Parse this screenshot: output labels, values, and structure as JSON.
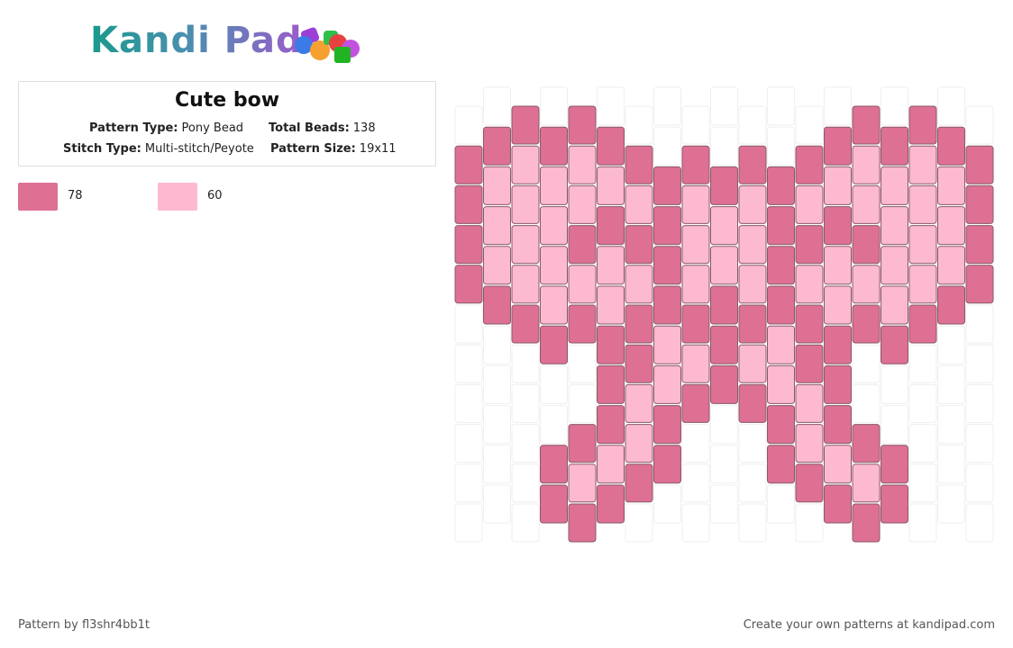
{
  "header": {
    "logo": "Kandi Pad"
  },
  "pattern_info": {
    "title": "Cute bow",
    "fields": [
      {
        "label": "Pattern Type:",
        "value": "Pony Bead"
      },
      {
        "label": "Total Beads:",
        "value": "138"
      },
      {
        "label": "Stitch Type:",
        "value": "Multi-stitch/Peyote"
      },
      {
        "label": "Pattern Size:",
        "value": "19x11"
      }
    ]
  },
  "legend": [
    {
      "color": "#dd7093",
      "count": 78
    },
    {
      "color": "#fdb9d0",
      "count": 60
    }
  ],
  "footer": {
    "author": "Pattern by fl3shr4bb1t",
    "promo": "Create your own patterns at kandipad.com"
  }
}
